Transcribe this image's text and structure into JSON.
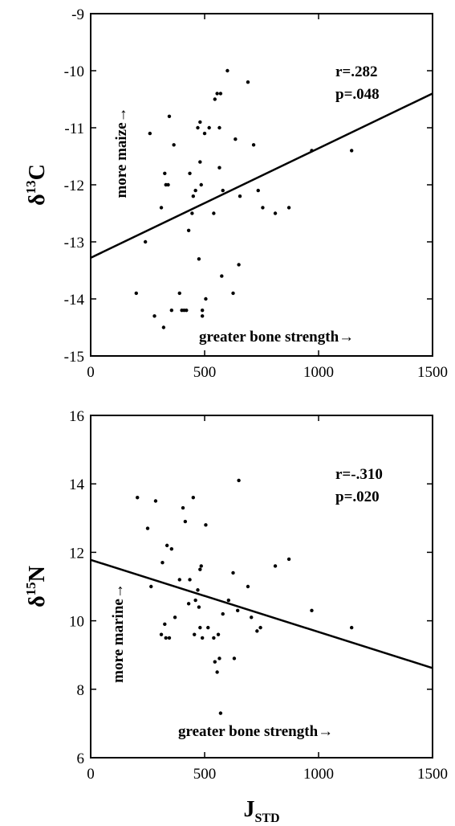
{
  "chart_data": [
    {
      "type": "scatter",
      "ylabel_main": "δ",
      "ylabel_sup": "13",
      "ylabel_rest": "C",
      "xlim": [
        0,
        1500
      ],
      "ylim": [
        -15,
        -9
      ],
      "xticks": [
        0,
        500,
        1000,
        1500
      ],
      "yticks": [
        -15,
        -14,
        -13,
        -12,
        -11,
        -10,
        -9
      ],
      "stat_r": "r=.282",
      "stat_p": "p=.048",
      "y_annotation": "more maize→",
      "x_annotation": "greater bone strength→",
      "regression": {
        "x": [
          0,
          1500
        ],
        "y": [
          -13.28,
          -10.4
        ]
      },
      "points": [
        [
          200,
          -13.9
        ],
        [
          240,
          -13.0
        ],
        [
          260,
          -11.1
        ],
        [
          280,
          -14.3
        ],
        [
          310,
          -12.4
        ],
        [
          320,
          -14.5
        ],
        [
          325,
          -11.8
        ],
        [
          330,
          -12.0
        ],
        [
          340,
          -12.0
        ],
        [
          345,
          -10.8
        ],
        [
          355,
          -14.2
        ],
        [
          365,
          -11.3
        ],
        [
          390,
          -13.9
        ],
        [
          400,
          -14.2
        ],
        [
          410,
          -14.2
        ],
        [
          420,
          -14.2
        ],
        [
          430,
          -12.8
        ],
        [
          435,
          -11.8
        ],
        [
          445,
          -12.5
        ],
        [
          450,
          -12.2
        ],
        [
          460,
          -12.1
        ],
        [
          470,
          -11.0
        ],
        [
          475,
          -13.3
        ],
        [
          480,
          -10.9
        ],
        [
          480,
          -11.6
        ],
        [
          485,
          -12.0
        ],
        [
          490,
          -14.2
        ],
        [
          490,
          -14.3
        ],
        [
          500,
          -11.1
        ],
        [
          505,
          -14.0
        ],
        [
          520,
          -11.0
        ],
        [
          540,
          -12.5
        ],
        [
          545,
          -10.5
        ],
        [
          555,
          -10.4
        ],
        [
          565,
          -11.0
        ],
        [
          565,
          -11.7
        ],
        [
          570,
          -10.4
        ],
        [
          575,
          -13.6
        ],
        [
          580,
          -12.1
        ],
        [
          600,
          -10.0
        ],
        [
          625,
          -13.9
        ],
        [
          635,
          -11.2
        ],
        [
          650,
          -13.4
        ],
        [
          655,
          -12.2
        ],
        [
          690,
          -10.2
        ],
        [
          715,
          -11.3
        ],
        [
          735,
          -12.1
        ],
        [
          755,
          -12.4
        ],
        [
          810,
          -12.5
        ],
        [
          870,
          -12.4
        ],
        [
          970,
          -11.4
        ],
        [
          1145,
          -11.4
        ]
      ]
    },
    {
      "type": "scatter",
      "ylabel_main": "δ",
      "ylabel_sup": "15",
      "ylabel_rest": "N",
      "xlabel_main": "J",
      "xlabel_sub": "STD",
      "xlim": [
        0,
        1500
      ],
      "ylim": [
        6,
        16
      ],
      "xticks": [
        0,
        500,
        1000,
        1500
      ],
      "yticks": [
        6,
        8,
        10,
        12,
        14,
        16
      ],
      "stat_r": "r=-.310",
      "stat_p": "p=.020",
      "y_annotation": "more marine→",
      "x_annotation": "greater bone strength→",
      "regression": {
        "x": [
          0,
          1500
        ],
        "y": [
          11.78,
          8.62
        ]
      },
      "points": [
        [
          205,
          13.6
        ],
        [
          250,
          12.7
        ],
        [
          265,
          11.0
        ],
        [
          285,
          13.5
        ],
        [
          310,
          9.6
        ],
        [
          315,
          11.7
        ],
        [
          325,
          9.9
        ],
        [
          330,
          9.5
        ],
        [
          335,
          12.2
        ],
        [
          345,
          9.5
        ],
        [
          355,
          12.1
        ],
        [
          370,
          10.1
        ],
        [
          390,
          11.2
        ],
        [
          405,
          13.3
        ],
        [
          415,
          12.9
        ],
        [
          430,
          10.5
        ],
        [
          435,
          11.2
        ],
        [
          450,
          13.6
        ],
        [
          455,
          9.6
        ],
        [
          460,
          10.6
        ],
        [
          470,
          10.9
        ],
        [
          475,
          10.4
        ],
        [
          480,
          11.5
        ],
        [
          480,
          9.8
        ],
        [
          485,
          11.6
        ],
        [
          490,
          9.5
        ],
        [
          505,
          12.8
        ],
        [
          515,
          9.8
        ],
        [
          540,
          9.5
        ],
        [
          545,
          8.8
        ],
        [
          555,
          8.5
        ],
        [
          560,
          9.6
        ],
        [
          565,
          8.9
        ],
        [
          570,
          7.3
        ],
        [
          580,
          10.2
        ],
        [
          605,
          10.6
        ],
        [
          625,
          11.4
        ],
        [
          630,
          8.9
        ],
        [
          645,
          10.3
        ],
        [
          650,
          14.1
        ],
        [
          690,
          11.0
        ],
        [
          705,
          10.1
        ],
        [
          730,
          9.7
        ],
        [
          745,
          9.8
        ],
        [
          810,
          11.6
        ],
        [
          870,
          11.8
        ],
        [
          970,
          10.3
        ],
        [
          1145,
          9.8
        ]
      ]
    }
  ]
}
